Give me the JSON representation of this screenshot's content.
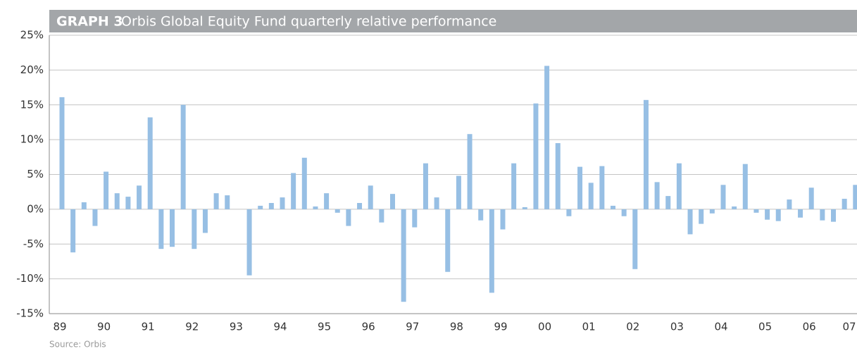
{
  "chart_data": {
    "type": "bar",
    "label": "GRAPH 3",
    "title": "Orbis Global Equity Fund quarterly relative performance",
    "source": "Source: Orbis",
    "color": "#97bfe4",
    "categories": [
      "89",
      null,
      null,
      null,
      "90",
      null,
      null,
      null,
      "91",
      null,
      null,
      null,
      "92",
      null,
      null,
      null,
      "93",
      null,
      null,
      null,
      "94",
      null,
      null,
      null,
      "95",
      null,
      null,
      null,
      "96",
      null,
      null,
      null,
      "97",
      null,
      null,
      null,
      "98",
      null,
      null,
      null,
      "99",
      null,
      null,
      null,
      "00",
      null,
      null,
      null,
      "01",
      null,
      null,
      null,
      "02",
      null,
      null,
      null,
      "03",
      null,
      null,
      null,
      "04",
      null,
      null,
      null,
      "05",
      null,
      null,
      null,
      "06",
      null,
      null,
      null,
      "07"
    ],
    "values": [
      16.1,
      -6.2,
      1.0,
      -2.4,
      5.4,
      2.3,
      1.8,
      3.4,
      13.2,
      -5.7,
      -5.4,
      15.0,
      -5.7,
      -3.4,
      2.3,
      2.0,
      0,
      -9.5,
      0.5,
      0.9,
      1.7,
      5.2,
      7.4,
      0.4,
      2.3,
      -0.5,
      -2.4,
      0.9,
      3.4,
      -1.9,
      2.2,
      -13.3,
      -2.6,
      6.6,
      1.7,
      -9.0,
      4.8,
      10.8,
      -1.6,
      -12.0,
      -2.9,
      6.6,
      0.3,
      15.2,
      20.6,
      9.5,
      -1.0,
      6.1,
      3.8,
      6.2,
      0.5,
      -1.0,
      -8.6,
      15.7,
      3.9,
      1.9,
      6.6,
      -3.6,
      -2.1,
      -0.6,
      3.5,
      0.4,
      6.5,
      -0.5,
      -1.5,
      -1.7,
      1.4,
      -1.2,
      3.1,
      -1.6,
      -1.8,
      1.5,
      3.5
    ],
    "ylim": [
      -15,
      25
    ],
    "yticks": [
      {
        "value": -15,
        "label": "-15%"
      },
      {
        "value": -10,
        "label": "-10%"
      },
      {
        "value": -5,
        "label": "-5%"
      },
      {
        "value": 0,
        "label": "0%"
      },
      {
        "value": 5,
        "label": "5%"
      },
      {
        "value": 10,
        "label": "10%"
      },
      {
        "value": 15,
        "label": "15%"
      },
      {
        "value": 20,
        "label": "20%"
      },
      {
        "value": 25,
        "label": "25%"
      }
    ],
    "grid": true
  }
}
